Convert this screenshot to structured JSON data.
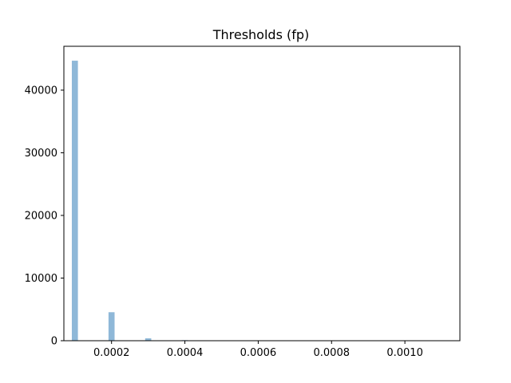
{
  "chart_data": {
    "type": "bar",
    "title": "Thresholds (fp)",
    "xlabel": "",
    "ylabel": "",
    "xlim": [
      7e-05,
      0.00115
    ],
    "ylim": [
      0,
      47000
    ],
    "bin_width": 1.66e-05,
    "x": [
      0.0001,
      0.0002,
      0.0003,
      0.0004
    ],
    "values": [
      44700,
      4550,
      380,
      90
    ],
    "x_ticks": [
      0.0002,
      0.0004,
      0.0006,
      0.0008,
      0.001
    ],
    "x_tick_labels": [
      "0.0002",
      "0.0004",
      "0.0006",
      "0.0008",
      "0.0010"
    ],
    "y_ticks": [
      0,
      10000,
      20000,
      30000,
      40000
    ],
    "y_tick_labels": [
      "0",
      "10000",
      "20000",
      "30000",
      "40000"
    ],
    "bar_color": "#8fb8d8",
    "grid": false,
    "legend": "none"
  }
}
